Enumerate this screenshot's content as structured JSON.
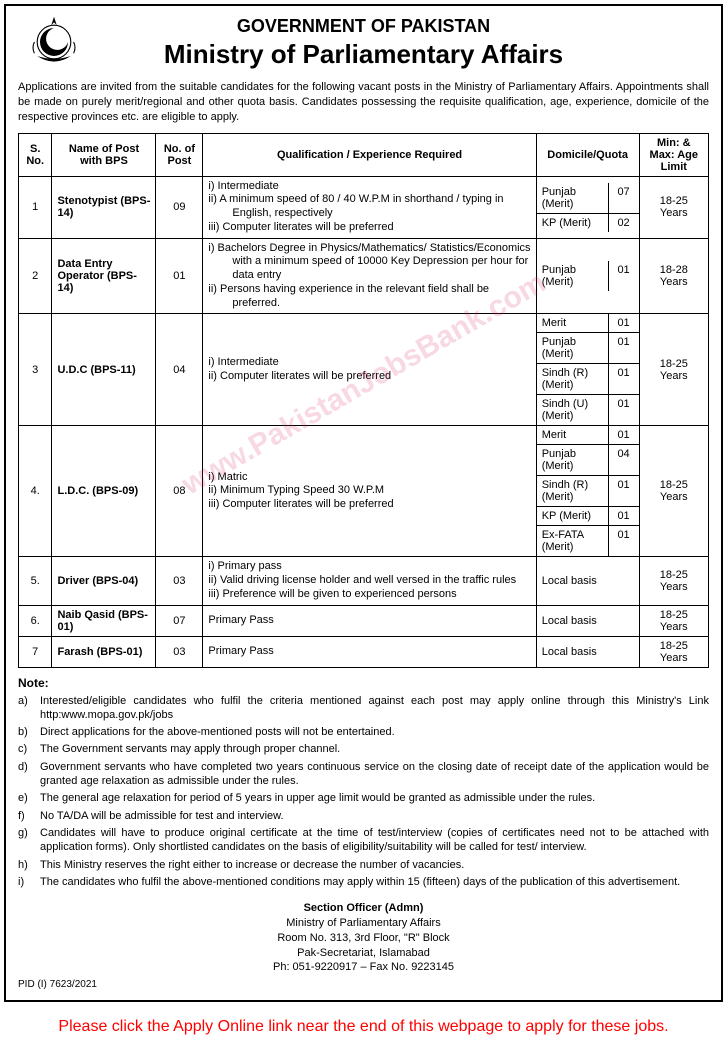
{
  "header": {
    "gov": "GOVERNMENT OF PAKISTAN",
    "ministry": "Ministry of Parliamentary Affairs"
  },
  "intro": "Applications are invited from the suitable candidates for the following vacant posts in the Ministry of Parliamentary Affairs. Appointments shall be made on purely merit/regional and other quota basis. Candidates possessing the requisite qualification, age, experience, domicile of the respective provinces etc. are eligible to apply.",
  "columns": {
    "sno": "S. No.",
    "name": "Name of Post with BPS",
    "num": "No. of Post",
    "qual": "Qualification / Experience Required",
    "dom": "Domicile/Quota",
    "age": "Min: & Max: Age Limit"
  },
  "posts": [
    {
      "sno": "1",
      "name": "Stenotypist (BPS-14)",
      "num": "09",
      "qual": [
        "i)    Intermediate",
        "ii)   A minimum speed of 80 / 40 W.P.M in shorthand / typing in English, respectively",
        "iii)  Computer literates will be preferred"
      ],
      "domicile": [
        {
          "label": "Punjab (Merit)",
          "n": "07"
        },
        {
          "label": "KP (Merit)",
          "n": "02"
        }
      ],
      "age": "18-25 Years"
    },
    {
      "sno": "2",
      "name": "Data Entry Operator (BPS-14)",
      "num": "01",
      "qual": [
        "i)    Bachelors Degree in Physics/Mathematics/ Statistics/Economics with a minimum speed of 10000 Key Depression per hour for data entry",
        "ii)   Persons having experience in the relevant field shall be preferred."
      ],
      "domicile": [
        {
          "label": "Punjab (Merit)",
          "n": "01"
        }
      ],
      "age": "18-28 Years"
    },
    {
      "sno": "3",
      "name": "U.D.C (BPS-11)",
      "num": "04",
      "qual": [
        "i)    Intermediate",
        "ii)   Computer literates will be preferred"
      ],
      "domicile": [
        {
          "label": "Merit",
          "n": "01"
        },
        {
          "label": "Punjab (Merit)",
          "n": "01"
        },
        {
          "label": "Sindh (R) (Merit)",
          "n": "01"
        },
        {
          "label": "Sindh (U) (Merit)",
          "n": "01"
        }
      ],
      "age": "18-25 Years"
    },
    {
      "sno": "4.",
      "name": "L.D.C. (BPS-09)",
      "num": "08",
      "qual": [
        "i)    Matric",
        "ii)   Minimum Typing Speed 30 W.P.M",
        "iii)  Computer literates will be preferred"
      ],
      "domicile": [
        {
          "label": "Merit",
          "n": "01"
        },
        {
          "label": "Punjab (Merit)",
          "n": "04"
        },
        {
          "label": "Sindh (R) (Merit)",
          "n": "01"
        },
        {
          "label": "KP (Merit)",
          "n": "01"
        },
        {
          "label": "Ex-FATA (Merit)",
          "n": "01"
        }
      ],
      "age": "18-25 Years"
    },
    {
      "sno": "5.",
      "name": "Driver (BPS-04)",
      "num": "03",
      "qual": [
        "i)    Primary pass",
        "ii)   Valid driving license holder and well versed in the traffic rules",
        "iii)  Preference will be given to experienced persons"
      ],
      "domicile": [
        {
          "label": "Local basis",
          "n": ""
        }
      ],
      "age": "18-25 Years"
    },
    {
      "sno": "6.",
      "name": "Naib Qasid (BPS-01)",
      "num": "07",
      "qual": [
        "Primary Pass"
      ],
      "domicile": [
        {
          "label": "Local basis",
          "n": ""
        }
      ],
      "age": "18-25 Years"
    },
    {
      "sno": "7",
      "name": "Farash (BPS-01)",
      "num": "03",
      "qual": [
        "Primary Pass"
      ],
      "domicile": [
        {
          "label": "Local basis",
          "n": ""
        }
      ],
      "age": "18-25 Years"
    }
  ],
  "note_heading": "Note:",
  "notes": [
    {
      "k": "a)",
      "t": "Interested/eligible candidates who fulfil the criteria mentioned against each post may apply online through this Ministry's Link http:www.mopa.gov.pk/jobs"
    },
    {
      "k": "b)",
      "t": "Direct applications for the above-mentioned posts will not be entertained."
    },
    {
      "k": "c)",
      "t": "The Government servants may apply through proper channel."
    },
    {
      "k": "d)",
      "t": "Government servants who have completed two years continuous service on the closing date of receipt date of the application would be granted age relaxation as admissible under the rules."
    },
    {
      "k": "e)",
      "t": "The general age relaxation for period of 5 years in upper age limit would be granted as admissible under the rules."
    },
    {
      "k": "f)",
      "t": "No TA/DA will be admissible for test and interview."
    },
    {
      "k": "g)",
      "t": "Candidates will have to produce original certificate at the time of test/interview (copies of certificates need not to be attached with application forms). Only shortlisted candidates on the basis of eligibility/suitability will be called for test/ interview."
    },
    {
      "k": "h)",
      "t": "This Ministry reserves the right either to increase or decrease the number of vacancies."
    },
    {
      "k": "i)",
      "t": "The candidates who fulfil the above-mentioned conditions may apply within 15 (fifteen) days of the publication of this advertisement."
    }
  ],
  "signature": {
    "officer": "Section Officer (Admn)",
    "ministry": "Ministry of Parliamentary Affairs",
    "room": "Room No. 313, 3rd Floor, \"R\" Block",
    "address": "Pak-Secretariat, Islamabad",
    "phone": "Ph: 051-9220917 – Fax No. 9223145"
  },
  "pid": "PID (I) 7623/2021",
  "watermark": "www.PakistanJobsBank.com",
  "apply_note": "Please click the Apply Online link near the end of this webpage to apply for these jobs.",
  "colors": {
    "border": "#000000",
    "text": "#000000",
    "apply": "#ff0000",
    "watermark": "rgba(214,40,100,0.18)",
    "background": "#ffffff"
  }
}
